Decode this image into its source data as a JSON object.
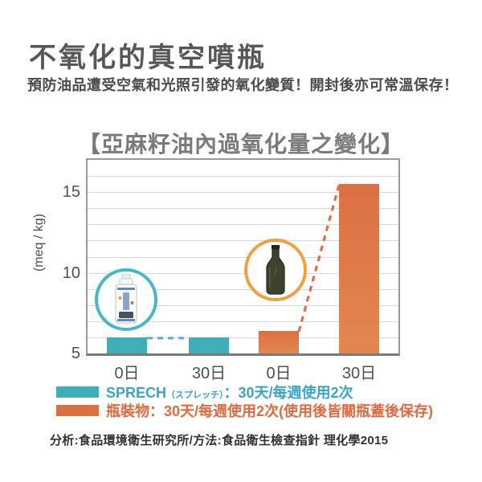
{
  "page": {
    "title": "不氧化的真空噴瓶",
    "subtitle": "預防油品遭受空氣和光照引發的氧化變質！開封後亦可常溫保存！",
    "footer": "分析:食品環境衛生研究所/方法:食品衛生檢查指針 理化學2015"
  },
  "colors": {
    "teal_bar": "#3fb0b9",
    "orange_bar_top": "#dc6f43",
    "orange_bar_bottom": "#e2874f",
    "teal_dash": "#58a8d9",
    "orange_dash": "#e8653c",
    "teal_ring": "#45b8c8",
    "orange_ring": "#f0a03e",
    "legend_teal_text": "#39a5c8",
    "legend_orange_text": "#e26a3c"
  },
  "legend": {
    "row1": {
      "brand": "SPRECH",
      "brand_note": "（スプレッチ）",
      "rest": "：30天/每週使用2次"
    },
    "row2": {
      "label": "瓶裝物：30天/每週使用2次(使用後皆關瓶蓋後保存)"
    }
  },
  "icons": {
    "teal_badge": "spray-bottle-icon",
    "orange_badge": "glass-bottle-icon"
  },
  "chart_data": {
    "type": "bar",
    "title": "【亞麻籽油內過氧化量之變化】",
    "ylabel": "(meq / kg)",
    "ylim": [
      5,
      17
    ],
    "yticks": [
      5,
      10,
      15
    ],
    "grid_step": 1,
    "grid": "horizontal gridlines every 1 unit, light gray",
    "legend_position": "below chart",
    "categories": [
      "0日",
      "30日",
      "0日",
      "30日"
    ],
    "series": [
      {
        "name": "SPRECH（スプレッチ）：30天/每週使用2次",
        "color": "teal",
        "values": [
          6.0,
          6.0
        ],
        "dashed_connector": true
      },
      {
        "name": "瓶裝物：30天/每週使用2次(使用後皆關瓶蓋後保存)",
        "color": "orange",
        "values": [
          6.4,
          15.5
        ],
        "dashed_connector": true
      }
    ],
    "annotations": [
      "teal circled photo of SPRECH spray bottle over first series",
      "orange circled photo of dark glass bottle over second series"
    ]
  }
}
